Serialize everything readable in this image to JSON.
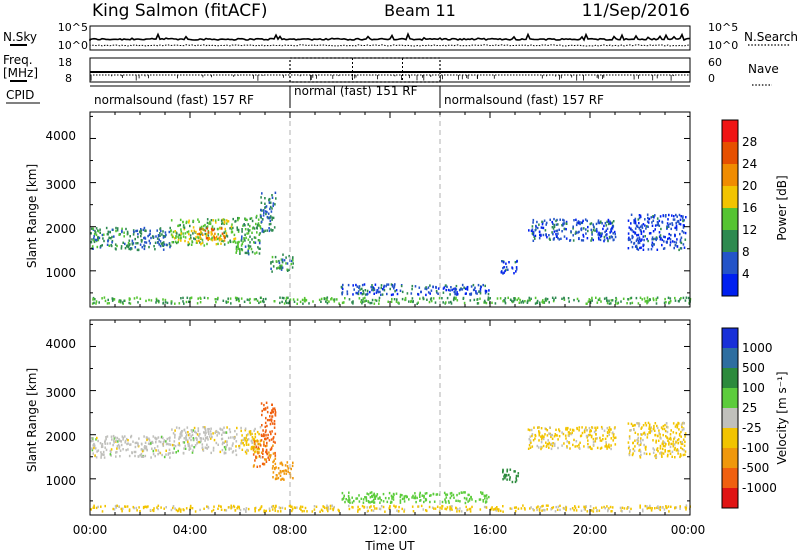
{
  "header": {
    "station": "King Salmon (fitACF)",
    "beam": "Beam 11",
    "date": "11/Sep/2016"
  },
  "left_labels": {
    "nsky": "N.Sky",
    "freq": "Freq.",
    "freq_unit": "[MHz]",
    "cpid": "CPID"
  },
  "right_labels": {
    "nsearch": "N.Search",
    "nave": "Nave"
  },
  "nsky_ticks": [
    "10^5",
    "10^0"
  ],
  "nsearch_ticks": [
    "10^5",
    "10^0"
  ],
  "freq_ticks": [
    "18",
    "8"
  ],
  "nave_ticks": [
    "60",
    "0"
  ],
  "cpid_segments": [
    {
      "label": "normalsound (fast) 157 RF",
      "start_hour": 0,
      "end_hour": 8
    },
    {
      "label": "normal (fast) 151 RF",
      "start_hour": 8,
      "end_hour": 14
    },
    {
      "label": "normalsound (fast) 157 RF",
      "start_hour": 14,
      "end_hour": 24
    }
  ],
  "x_axis": {
    "label": "Time UT",
    "ticks": [
      "00:00",
      "04:00",
      "08:00",
      "12:00",
      "16:00",
      "20:00",
      "00:00"
    ],
    "tick_hours": [
      0,
      4,
      8,
      12,
      16,
      20,
      24
    ],
    "minor_step_hours": 1
  },
  "y_axis": {
    "label": "Slant Range [km]",
    "ticks": [
      "1000",
      "2000",
      "3000",
      "4000"
    ],
    "tick_values": [
      1000,
      2000,
      3000,
      4000
    ],
    "range": [
      180,
      4600
    ]
  },
  "power_colorbar": {
    "label": "Power [dB]",
    "ticks": [
      "4",
      "8",
      "12",
      "16",
      "20",
      "24",
      "28"
    ],
    "colors": [
      "#0020f0",
      "#2454c8",
      "#2e8a50",
      "#55c432",
      "#f2c400",
      "#f08c00",
      "#e65000",
      "#f01414"
    ]
  },
  "velocity_colorbar": {
    "label": "Velocity [m s⁻¹]",
    "ticks": [
      "1000",
      "500",
      "100",
      "25",
      "-25",
      "-100",
      "-500",
      "-1000"
    ],
    "colors": [
      "#1830d8",
      "#2e6ea0",
      "#2c8a3c",
      "#5ccc3c",
      "#c0c0bc",
      "#f2c400",
      "#f0980c",
      "#f06010",
      "#e01414"
    ]
  },
  "chart_data": {
    "type": "heatmap",
    "title": "King Salmon (fitACF) Beam 11 11/Sep/2016",
    "xlabel": "Time UT",
    "ylabel": "Slant Range [km]",
    "xlim_hours": [
      0,
      24
    ],
    "ylim_km": [
      180,
      4600
    ],
    "grid": false,
    "panels": [
      {
        "name": "Power [dB]",
        "scale": [
          0,
          30
        ],
        "echo_regions": [
          {
            "t_start": 0.0,
            "t_end": 1.6,
            "r_min": 1500,
            "r_max": 2000,
            "value": 10
          },
          {
            "t_start": 1.6,
            "t_end": 3.2,
            "r_min": 1500,
            "r_max": 2000,
            "value": 8
          },
          {
            "t_start": 3.2,
            "t_end": 5.8,
            "r_min": 1600,
            "r_max": 2200,
            "value": 14
          },
          {
            "t_start": 4.2,
            "t_end": 5.4,
            "r_min": 1700,
            "r_max": 2000,
            "value": 22
          },
          {
            "t_start": 5.8,
            "t_end": 6.8,
            "r_min": 1400,
            "r_max": 2300,
            "value": 11
          },
          {
            "t_start": 6.8,
            "t_end": 7.4,
            "r_min": 1900,
            "r_max": 2800,
            "value": 8
          },
          {
            "t_start": 7.2,
            "t_end": 8.1,
            "r_min": 1000,
            "r_max": 1400,
            "value": 10
          },
          {
            "t_start": 16.4,
            "t_end": 17.1,
            "r_min": 950,
            "r_max": 1250,
            "value": 5
          },
          {
            "t_start": 17.5,
            "t_end": 21.0,
            "r_min": 1700,
            "r_max": 2200,
            "value": 6
          },
          {
            "t_start": 21.5,
            "t_end": 23.8,
            "r_min": 1500,
            "r_max": 2300,
            "value": 5
          },
          {
            "t_start": 0.0,
            "t_end": 24.0,
            "r_min": 280,
            "r_max": 420,
            "value": 12
          },
          {
            "t_start": 10.0,
            "t_end": 16.0,
            "r_min": 480,
            "r_max": 720,
            "value": 6
          }
        ]
      },
      {
        "name": "Velocity [m s⁻¹]",
        "scale": [
          -1000,
          1000
        ],
        "echo_regions": [
          {
            "t_start": 0.0,
            "t_end": 3.2,
            "r_min": 1500,
            "r_max": 2000,
            "value": 0
          },
          {
            "t_start": 3.2,
            "t_end": 5.8,
            "r_min": 1600,
            "r_max": 2200,
            "value": 0
          },
          {
            "t_start": 5.8,
            "t_end": 6.8,
            "r_min": 1500,
            "r_max": 2200,
            "value": -40
          },
          {
            "t_start": 6.8,
            "t_end": 7.4,
            "r_min": 1900,
            "r_max": 2800,
            "value": -600
          },
          {
            "t_start": 6.5,
            "t_end": 7.4,
            "r_min": 1300,
            "r_max": 1900,
            "value": -500
          },
          {
            "t_start": 7.2,
            "t_end": 8.1,
            "r_min": 1000,
            "r_max": 1400,
            "value": -400
          },
          {
            "t_start": 16.4,
            "t_end": 17.1,
            "r_min": 950,
            "r_max": 1250,
            "value": 150
          },
          {
            "t_start": 17.5,
            "t_end": 21.0,
            "r_min": 1700,
            "r_max": 2200,
            "value": -40
          },
          {
            "t_start": 21.5,
            "t_end": 23.8,
            "r_min": 1500,
            "r_max": 2300,
            "value": -40
          },
          {
            "t_start": 0.0,
            "t_end": 24.0,
            "r_min": 280,
            "r_max": 420,
            "value": -40
          },
          {
            "t_start": 10.0,
            "t_end": 16.0,
            "r_min": 480,
            "r_max": 720,
            "value": 60
          }
        ]
      }
    ]
  }
}
